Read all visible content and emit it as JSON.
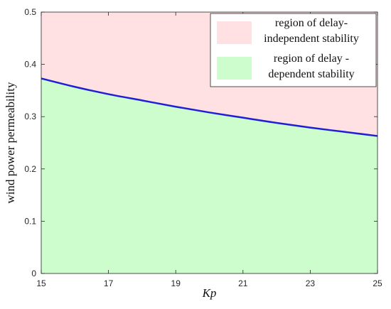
{
  "chart_data": {
    "type": "area",
    "xlabel": "Kp",
    "ylabel": "wind power permeability",
    "xlim": [
      15,
      25
    ],
    "ylim": [
      0,
      0.5
    ],
    "x_ticks": [
      15,
      17,
      19,
      21,
      23,
      25
    ],
    "y_ticks": [
      0,
      0.1,
      0.2,
      0.3,
      0.4,
      0.5
    ],
    "x_tick_labels": [
      "15",
      "17",
      "19",
      "21",
      "23",
      "25"
    ],
    "y_tick_labels": [
      "0",
      "0.1",
      "0.2",
      "0.3",
      "0.4",
      "0.5"
    ],
    "grid": false,
    "legend_position": "top-right",
    "boundary": {
      "x": [
        15,
        16,
        17,
        18,
        19,
        20,
        21,
        22,
        23,
        24,
        25
      ],
      "y": [
        0.373,
        0.357,
        0.343,
        0.331,
        0.319,
        0.308,
        0.298,
        0.288,
        0.279,
        0.271,
        0.263
      ]
    },
    "regions": [
      {
        "name_lines": [
          "region of delay-",
          "independent stability"
        ],
        "fill": "#ffe1e4",
        "position": "above"
      },
      {
        "name_lines": [
          "region of delay -",
          "dependent stability"
        ],
        "fill": "#cdfccd",
        "position": "below"
      }
    ],
    "line_color": "#1f1fd6"
  }
}
